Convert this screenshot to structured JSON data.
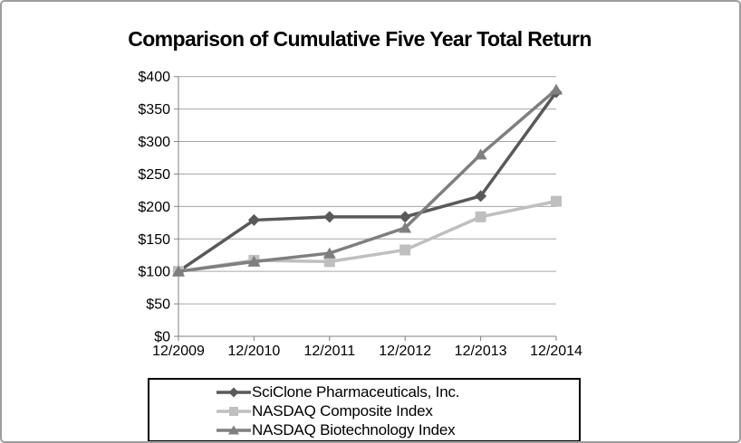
{
  "frame": {
    "border_color": "#9e9e9e",
    "background": "#ffffff"
  },
  "chart_data": {
    "type": "line",
    "title": "Comparison of Cumulative Five Year Total Return",
    "categories": [
      "12/2009",
      "12/2010",
      "12/2011",
      "12/2012",
      "12/2013",
      "12/2014"
    ],
    "series": [
      {
        "name": "SciClone Pharmaceuticals, Inc.",
        "marker": "diamond",
        "color": "#595959",
        "values": [
          100,
          179,
          184,
          184,
          216,
          376
        ]
      },
      {
        "name": "NASDAQ Composite Index",
        "marker": "square",
        "color": "#bfbfbf",
        "values": [
          100,
          117,
          115,
          133,
          184,
          208
        ]
      },
      {
        "name": "NASDAQ Biotechnology Index",
        "marker": "triangle",
        "color": "#7f7f7f",
        "values": [
          100,
          115,
          128,
          167,
          280,
          380
        ]
      }
    ],
    "y_axis": {
      "min": 0,
      "max": 400,
      "step": 50,
      "tick_labels": [
        "$400",
        "$350",
        "$300",
        "$250",
        "$200",
        "$150",
        "$100",
        "$50",
        "$0"
      ]
    },
    "x_axis": {
      "tick_labels": [
        "12/2009",
        "12/2010",
        "12/2011",
        "12/2012",
        "12/2013",
        "12/2014"
      ]
    },
    "grid": true,
    "legend_position": "bottom",
    "gridline_color": "#a6a6a6",
    "axis_color": "#808080",
    "text_color": "#000000"
  }
}
